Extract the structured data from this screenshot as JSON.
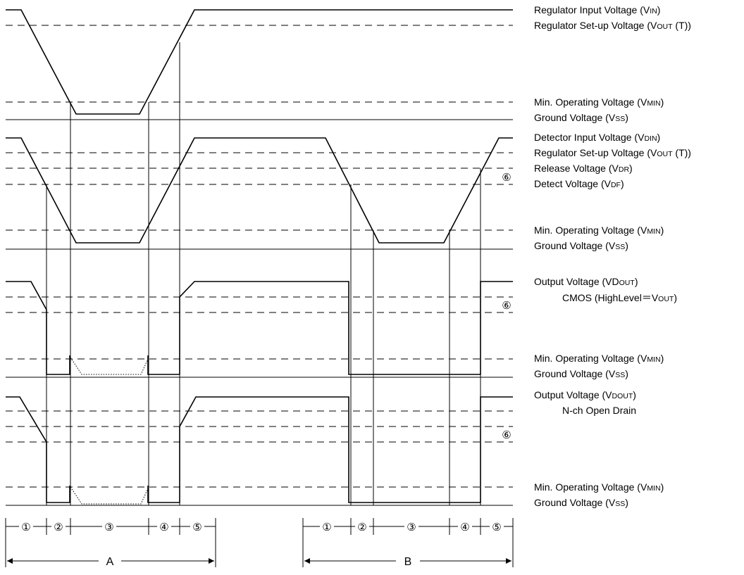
{
  "labels": {
    "vin": "Regulator Input Voltage (V",
    "vin_sub": "IN",
    "vin_end": ")",
    "vout_t": "Regulator Set-up Voltage (V",
    "vout_t_sub": "OUT",
    "vout_t_end": " (T))",
    "vmin": "Min. Operating Voltage (V",
    "vmin_sub": "MIN",
    "vmin_end": ")",
    "vss": "Ground Voltage (V",
    "vss_sub": "SS",
    "vss_end": ")",
    "vdin": "Detector Input Voltage (V",
    "vdin_sub": "DIN",
    "vdin_end": ")",
    "vdr": "Release Voltage (V",
    "vdr_sub": "DR",
    "vdr_end": ")",
    "vdf": "Detect Voltage (V",
    "vdf_sub": "DF",
    "vdf_end": ")",
    "vdout": "Output Voltage (VD",
    "vdout_sub": "OUT",
    "vdout_end": ")",
    "cmos": "CMOS (HighLevel",
    "cmos_eq": "＝",
    "cmos_v": "V",
    "cmos_sub": "OUT",
    "cmos_end": ")",
    "vdout2": "Output Voltage (V",
    "vdout2_sub": "DOUT",
    "vdout2_end": ")",
    "nch": "N-ch Open Drain"
  },
  "markers": {
    "six": "⑥",
    "seg1": "①",
    "seg2": "②",
    "seg3": "③",
    "seg4": "④",
    "seg5": "⑤"
  },
  "ranges": {
    "a": "A",
    "b": "B"
  }
}
